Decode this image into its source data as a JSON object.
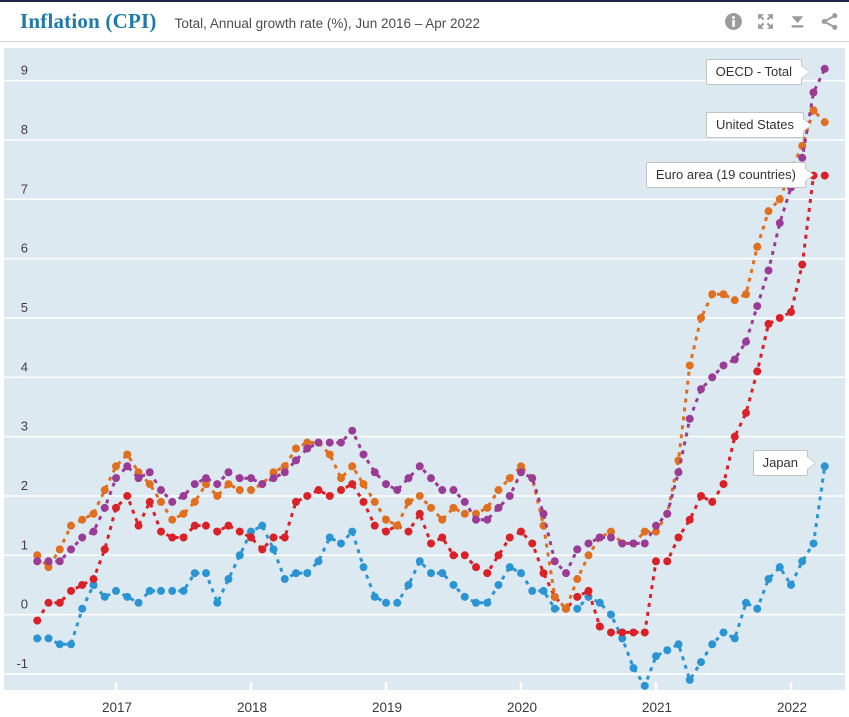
{
  "header": {
    "title": "Inflation (CPI)",
    "subtitle": "Total, Annual growth rate (%), Jun 2016 – Apr 2022",
    "toolbar": [
      "info-icon",
      "fullscreen-icon",
      "download-icon",
      "share-icon"
    ]
  },
  "colors": {
    "top_bar": "#20294a",
    "title_accent": "#1e7aa8",
    "subtitle_text": "#4c4c4c",
    "icon_gray": "#9b9b9b",
    "plot_background": "#dde9f0",
    "gridline": "#ffffff",
    "axis_text": "#3c3c3c",
    "oecd_purple": "#9a3c96",
    "us_orange": "#e06f20",
    "euro_red": "#da2128",
    "japan_blue": "#2b95d3"
  },
  "chart_data": {
    "type": "line",
    "title": "Inflation (CPI)",
    "subtitle": "Total, Annual growth rate (%), Jun 2016 – Apr 2022",
    "unit": "Annual growth rate (%)",
    "x_frequency": "monthly",
    "x_start": "Jun 2016",
    "x_end": "Apr 2022",
    "n_points": 71,
    "grid": "horizontal",
    "legend_position": "end-of-line callouts",
    "style": "dashed lines with round markers",
    "ylim": [
      -1.27,
      9.55
    ],
    "yticks": [
      -1,
      0,
      1,
      2,
      3,
      4,
      5,
      6,
      7,
      8,
      9
    ],
    "x_ticks": [
      {
        "label": "2017",
        "month_index": 7
      },
      {
        "label": "2018",
        "month_index": 19
      },
      {
        "label": "2019",
        "month_index": 31
      },
      {
        "label": "2020",
        "month_index": 43
      },
      {
        "label": "2021",
        "month_index": 55
      },
      {
        "label": "2022",
        "month_index": 67
      }
    ],
    "series": [
      {
        "name": "OECD - Total",
        "color": "#9a3c96",
        "values": [
          0.9,
          0.9,
          0.9,
          1.1,
          1.3,
          1.4,
          1.8,
          2.3,
          2.5,
          2.3,
          2.4,
          2.1,
          1.9,
          2.0,
          2.2,
          2.3,
          2.2,
          2.4,
          2.3,
          2.3,
          2.2,
          2.3,
          2.4,
          2.6,
          2.8,
          2.9,
          2.9,
          2.9,
          3.1,
          2.7,
          2.4,
          2.2,
          2.1,
          2.3,
          2.5,
          2.3,
          2.1,
          2.1,
          1.9,
          1.6,
          1.6,
          1.8,
          2.0,
          2.4,
          2.3,
          1.7,
          0.9,
          0.7,
          1.1,
          1.2,
          1.3,
          1.3,
          1.2,
          1.2,
          1.2,
          1.5,
          1.7,
          2.4,
          3.3,
          3.8,
          4.0,
          4.2,
          4.3,
          4.6,
          5.2,
          5.8,
          6.6,
          7.2,
          7.7,
          8.8,
          9.2
        ]
      },
      {
        "name": "United States",
        "color": "#e06f20",
        "values": [
          1.0,
          0.8,
          1.1,
          1.5,
          1.6,
          1.7,
          2.1,
          2.5,
          2.7,
          2.4,
          2.2,
          1.9,
          1.6,
          1.7,
          1.9,
          2.2,
          2.0,
          2.2,
          2.1,
          2.1,
          2.2,
          2.4,
          2.5,
          2.8,
          2.9,
          2.9,
          2.7,
          2.3,
          2.5,
          2.2,
          1.9,
          1.6,
          1.5,
          1.9,
          2.0,
          1.8,
          1.6,
          1.8,
          1.7,
          1.7,
          1.8,
          2.1,
          2.3,
          2.5,
          2.3,
          1.5,
          0.3,
          0.1,
          0.6,
          1.0,
          1.3,
          1.4,
          1.2,
          1.2,
          1.4,
          1.4,
          1.7,
          2.6,
          4.2,
          5.0,
          5.4,
          5.4,
          5.3,
          5.4,
          6.2,
          6.8,
          7.0,
          7.5,
          7.9,
          8.5,
          8.3
        ]
      },
      {
        "name": "Euro area (19 countries)",
        "color": "#da2128",
        "values": [
          -0.1,
          0.2,
          0.2,
          0.4,
          0.5,
          0.6,
          1.1,
          1.8,
          2.0,
          1.5,
          1.9,
          1.4,
          1.3,
          1.3,
          1.5,
          1.5,
          1.4,
          1.5,
          1.4,
          1.3,
          1.1,
          1.3,
          1.3,
          1.9,
          2.0,
          2.1,
          2.0,
          2.1,
          2.2,
          1.9,
          1.5,
          1.4,
          1.5,
          1.4,
          1.7,
          1.2,
          1.3,
          1.0,
          1.0,
          0.8,
          0.7,
          1.0,
          1.3,
          1.4,
          1.2,
          0.7,
          0.3,
          0.1,
          0.3,
          0.4,
          -0.2,
          -0.3,
          -0.3,
          -0.3,
          -0.3,
          0.9,
          0.9,
          1.3,
          1.6,
          2.0,
          1.9,
          2.2,
          3.0,
          3.4,
          4.1,
          4.9,
          5.0,
          5.1,
          5.9,
          7.4,
          7.4
        ]
      },
      {
        "name": "Japan",
        "color": "#2b95d3",
        "values": [
          -0.4,
          -0.4,
          -0.5,
          -0.5,
          0.1,
          0.5,
          0.3,
          0.4,
          0.3,
          0.2,
          0.4,
          0.4,
          0.4,
          0.4,
          0.7,
          0.7,
          0.2,
          0.6,
          1.0,
          1.4,
          1.5,
          1.1,
          0.6,
          0.7,
          0.7,
          0.9,
          1.3,
          1.2,
          1.4,
          0.8,
          0.3,
          0.2,
          0.2,
          0.5,
          0.9,
          0.7,
          0.7,
          0.5,
          0.3,
          0.2,
          0.2,
          0.5,
          0.8,
          0.7,
          0.4,
          0.4,
          0.1,
          0.1,
          0.1,
          0.3,
          0.2,
          0.0,
          -0.4,
          -0.9,
          -1.2,
          -0.7,
          -0.6,
          -0.5,
          -1.1,
          -0.8,
          -0.5,
          -0.3,
          -0.4,
          0.2,
          0.1,
          0.6,
          0.8,
          0.5,
          0.9,
          1.2,
          2.5
        ]
      }
    ]
  }
}
